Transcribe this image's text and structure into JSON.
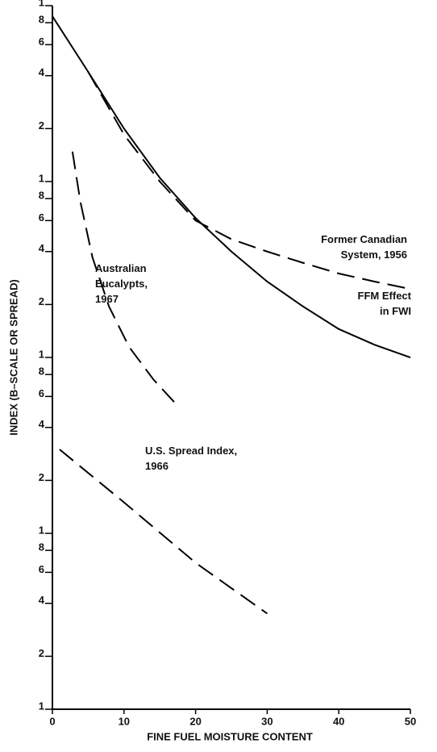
{
  "chart_data": {
    "type": "line",
    "xlabel": "FINE FUEL MOISTURE CONTENT",
    "ylabel": "INDEX (B–SCALE OR SPREAD)",
    "xlim": [
      0,
      50
    ],
    "xticks": [
      0,
      10,
      20,
      30,
      40,
      50
    ],
    "ylim": [
      1,
      10000
    ],
    "log_y": true,
    "yticks": [
      1,
      2,
      4,
      6,
      8,
      {
        "value": 10,
        "label": "1"
      },
      {
        "value": 20,
        "label": "2"
      },
      {
        "value": 40,
        "label": "4"
      },
      {
        "value": 60,
        "label": "6"
      },
      {
        "value": 80,
        "label": "8"
      },
      {
        "value": 100,
        "label": "1"
      },
      {
        "value": 200,
        "label": "2"
      },
      {
        "value": 400,
        "label": "4"
      },
      {
        "value": 600,
        "label": "6"
      },
      {
        "value": 800,
        "label": "8"
      },
      {
        "value": 1000,
        "label": "1"
      },
      {
        "value": 2000,
        "label": "2"
      },
      {
        "value": 4000,
        "label": "4"
      },
      {
        "value": 6000,
        "label": "6"
      },
      {
        "value": 8000,
        "label": "8"
      },
      {
        "value": 10000,
        "label": "1"
      }
    ],
    "series": [
      {
        "name": "FFM Effect\nin FWI",
        "color": "#000000",
        "dashed": false,
        "x": [
          0,
          5,
          10,
          15,
          20,
          25,
          30,
          35,
          40,
          45,
          50
        ],
        "values": [
          8700,
          4200,
          2000,
          1050,
          620,
          400,
          270,
          195,
          145,
          118,
          100
        ]
      },
      {
        "name": "Former Canadian\nSystem, 1956",
        "color": "#000000",
        "dashed": true,
        "x": [
          5,
          10,
          15,
          20,
          25,
          30,
          35,
          40,
          45,
          50
        ],
        "values": [
          4200,
          1850,
          1000,
          600,
          470,
          400,
          345,
          300,
          270,
          245
        ]
      },
      {
        "name": "Australian\nEucalypts,\n1967",
        "color": "#000000",
        "dashed": true,
        "x": [
          2.8,
          3.9,
          5.6,
          7.9,
          10.7,
          14.1,
          17.7
        ],
        "values": [
          1480,
          770,
          370,
          195,
          115,
          75,
          52
        ]
      },
      {
        "name": "U.S. Spread Index,\n1966",
        "color": "#000000",
        "dashed": true,
        "x": [
          1,
          10,
          20,
          30
        ],
        "values": [
          30,
          15,
          6.8,
          3.5
        ]
      }
    ]
  }
}
